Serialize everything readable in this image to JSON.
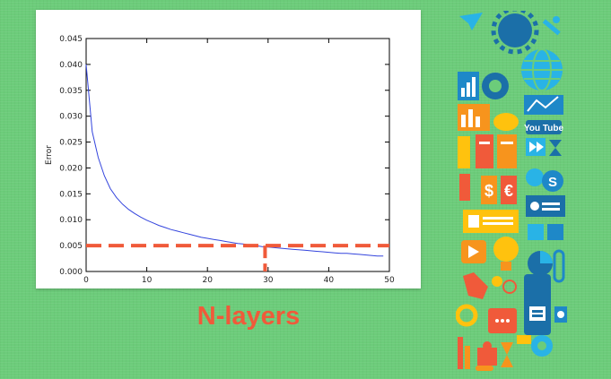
{
  "caption": "N-layers",
  "icon_collage": {
    "icons": [
      "bar-chart-icon",
      "gear-icon",
      "globe-icon",
      "trend-chart-icon",
      "youtube-icon",
      "hourglass-icon",
      "skype-icon",
      "dollar-sign-icon",
      "euro-sign-icon",
      "toggle-icon",
      "lightbulb-icon",
      "pie-chart-icon",
      "paperclip-icon",
      "hand-cursor-icon",
      "mobile-phone-icon",
      "chat-bubble-icon",
      "puzzle-piece-icon"
    ],
    "youtube_text": "You Tube",
    "colors": [
      "#1e88c8",
      "#29b3e6",
      "#f05a3a",
      "#f7941d",
      "#ffc20e",
      "#1b6fa8"
    ]
  },
  "chart_data": {
    "type": "line",
    "title": "",
    "xlabel": "",
    "ylabel": "Error",
    "xlim": [
      0,
      50
    ],
    "ylim": [
      0,
      0.045
    ],
    "grid": false,
    "xticks": [
      0,
      10,
      20,
      30,
      40,
      50
    ],
    "xtick_labels": [
      "0",
      "10",
      "20",
      "30",
      "40",
      "50"
    ],
    "yticks": [
      0,
      0.005,
      0.01,
      0.015,
      0.02,
      0.025,
      0.03,
      0.035,
      0.04,
      0.045
    ],
    "ytick_labels": [
      "0.000",
      "0.005",
      "0.010",
      "0.015",
      "0.020",
      "0.025",
      "0.030",
      "0.035",
      "0.040",
      "0.045"
    ],
    "series": [
      {
        "color": "#3344dd",
        "x": [
          0,
          1,
          2,
          3,
          4,
          5,
          6,
          7,
          8,
          9,
          10,
          11,
          12,
          13,
          14,
          15,
          16,
          17,
          18,
          19,
          20,
          21,
          22,
          23,
          24,
          25,
          26,
          27,
          28,
          29,
          30,
          31,
          32,
          33,
          34,
          35,
          36,
          37,
          38,
          39,
          40,
          41,
          42,
          43,
          44,
          45,
          46,
          47,
          48,
          49
        ],
        "y": [
          0.04,
          0.027,
          0.022,
          0.0185,
          0.016,
          0.0143,
          0.013,
          0.012,
          0.0112,
          0.0105,
          0.0099,
          0.0094,
          0.0089,
          0.0085,
          0.0081,
          0.0078,
          0.0075,
          0.0072,
          0.0069,
          0.0066,
          0.0064,
          0.0062,
          0.006,
          0.0058,
          0.0056,
          0.0054,
          0.0053,
          0.0051,
          0.005,
          0.0048,
          0.0047,
          0.0046,
          0.0045,
          0.0044,
          0.0043,
          0.0042,
          0.0041,
          0.004,
          0.0039,
          0.0038,
          0.0037,
          0.0036,
          0.0035,
          0.0035,
          0.0034,
          0.0033,
          0.0032,
          0.0031,
          0.003,
          0.003
        ]
      }
    ],
    "annotations": [
      {
        "type": "hline",
        "y": 0.005,
        "color": "#f05a3a",
        "style": "dashed"
      },
      {
        "type": "vline",
        "x": 29.5,
        "y_to": 0.005,
        "color": "#f05a3a",
        "style": "dashed"
      }
    ]
  }
}
